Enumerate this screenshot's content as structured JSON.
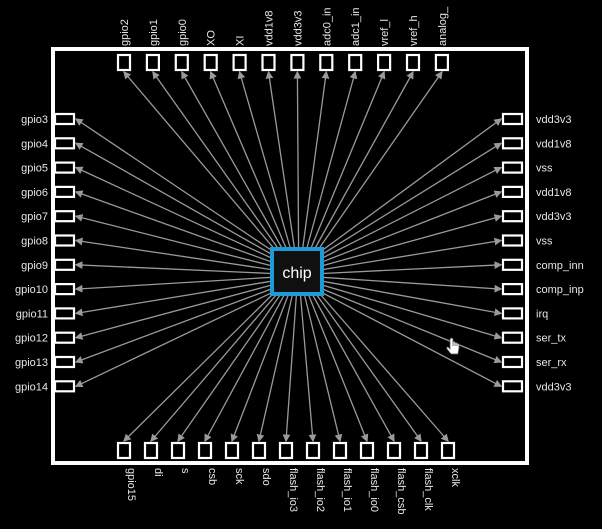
{
  "colors": {
    "background": "#000000",
    "package_outline": "#ffffff",
    "pin_outline": "#ffffff",
    "wire": "#9a9a9a",
    "chip_border": "#1e9ad6",
    "chip_fill": "#101010",
    "label": "#e6e6e6"
  },
  "chip": {
    "label": "chip"
  },
  "pins": {
    "top": [
      "gpio2",
      "gpio1",
      "gpio0",
      "XO",
      "XI",
      "vdd1v8",
      "vdd3v3",
      "adc0_in",
      "adc1_in",
      "vref_l",
      "vref_h",
      "analog_"
    ],
    "left": [
      "gpio3",
      "gpio4",
      "gpio5",
      "gpio6",
      "gpio7",
      "gpio8",
      "gpio9",
      "gpio10",
      "gpio11",
      "gpio12",
      "gpio13",
      "gpio14"
    ],
    "right": [
      "vdd3v3",
      "vdd1v8",
      "vss",
      "vdd1v8",
      "vdd3v3",
      "vss",
      "comp_inn",
      "comp_inp",
      "irq",
      "ser_tx",
      "ser_rx",
      "vdd3v3"
    ],
    "bottom": [
      "gpio15",
      "di",
      "s",
      "csb",
      "sck",
      "sdo",
      "flash_io3",
      "flash_io2",
      "flash_io1",
      "flash_io0",
      "flash_csb",
      "flash_clk",
      "xclk"
    ]
  },
  "cursor": {
    "icon": "hand-pointer-icon"
  }
}
